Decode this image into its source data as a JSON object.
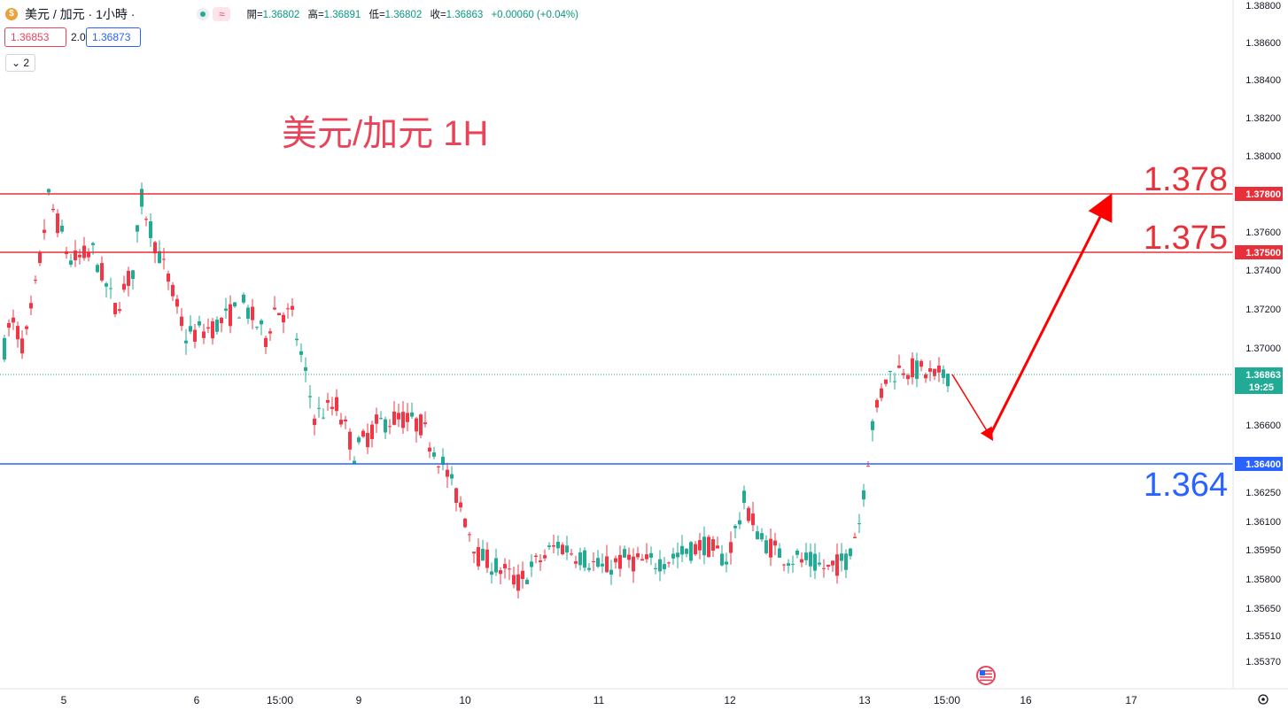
{
  "header": {
    "symbol": "美元 / 加元 · 1小時 ·",
    "symbol_icon": "$",
    "ohlc": {
      "open_label": "開",
      "open": "1.36802",
      "high_label": "高",
      "high": "1.36891",
      "low_label": "低",
      "low": "1.36802",
      "close_label": "收",
      "close": "1.36863",
      "change": "+0.00060 (+0.04%)"
    },
    "sell_price": "1.36853",
    "spread": "2.0",
    "buy_price": "1.36873",
    "indicator_count": "2",
    "wave_icon": "≈"
  },
  "colors": {
    "up": "#22ab94",
    "down": "#f23645",
    "resistance": "#e8303a",
    "support": "#2962ff",
    "arrow": "#ff0000"
  },
  "chart_data": {
    "type": "candlestick",
    "title": "美元/加元 1H",
    "y_ticks": [
      "1.38800",
      "1.38600",
      "1.38400",
      "1.38200",
      "1.38000",
      "1.37600",
      "1.37400",
      "1.37200",
      "1.37000",
      "1.36600",
      "1.36250",
      "1.36100",
      "1.35950",
      "1.35800",
      "1.35650",
      "1.35510",
      "1.35370"
    ],
    "x_ticks": [
      "5",
      "6",
      "15:00",
      "9",
      "10",
      "11",
      "12",
      "13",
      "15:00",
      "16",
      "17"
    ],
    "current_price": {
      "value": "1.36863",
      "countdown": "19:25"
    },
    "levels": [
      {
        "value": 1.378,
        "big_label": "1.378",
        "axis_label": "1.37800",
        "kind": "resistance"
      },
      {
        "value": 1.375,
        "big_label": "1.375",
        "axis_label": "1.37500",
        "kind": "resistance"
      },
      {
        "value": 1.364,
        "big_label": "1.364",
        "axis_label": "1.36400",
        "kind": "support"
      }
    ],
    "forecast_path": [
      1.36863,
      1.3655,
      1.378
    ]
  }
}
